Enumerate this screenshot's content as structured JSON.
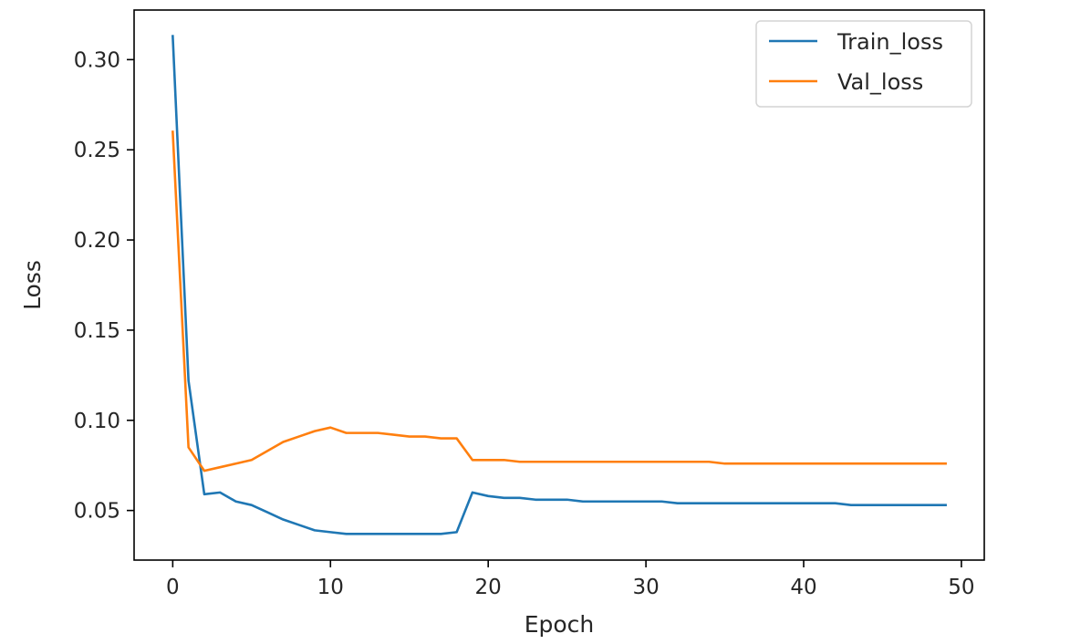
{
  "chart_data": {
    "type": "line",
    "title": "",
    "xlabel": "Epoch",
    "ylabel": "Loss",
    "xlim": [
      -2.45,
      51.45
    ],
    "ylim": [
      0.0225,
      0.3275
    ],
    "xticks": [
      0,
      10,
      20,
      30,
      40,
      50
    ],
    "yticks": [
      0.05,
      0.1,
      0.15,
      0.2,
      0.25,
      0.3
    ],
    "xtick_labels": [
      "0",
      "10",
      "20",
      "30",
      "40",
      "50"
    ],
    "ytick_labels": [
      "0.05",
      "0.10",
      "0.15",
      "0.20",
      "0.25",
      "0.30"
    ],
    "grid": false,
    "legend_position": "top-right",
    "x": [
      0,
      1,
      2,
      3,
      4,
      5,
      6,
      7,
      8,
      9,
      10,
      11,
      12,
      13,
      14,
      15,
      16,
      17,
      18,
      19,
      20,
      21,
      22,
      23,
      24,
      25,
      26,
      27,
      28,
      29,
      30,
      31,
      32,
      33,
      34,
      35,
      36,
      37,
      38,
      39,
      40,
      41,
      42,
      43,
      44,
      45,
      46,
      47,
      48,
      49
    ],
    "series": [
      {
        "name": "Train_loss",
        "color": "#1f77b4",
        "values": [
          0.313,
          0.122,
          0.059,
          0.06,
          0.055,
          0.053,
          0.049,
          0.045,
          0.042,
          0.039,
          0.038,
          0.037,
          0.037,
          0.037,
          0.037,
          0.037,
          0.037,
          0.037,
          0.038,
          0.06,
          0.058,
          0.057,
          0.057,
          0.056,
          0.056,
          0.056,
          0.055,
          0.055,
          0.055,
          0.055,
          0.055,
          0.055,
          0.054,
          0.054,
          0.054,
          0.054,
          0.054,
          0.054,
          0.054,
          0.054,
          0.054,
          0.054,
          0.054,
          0.053,
          0.053,
          0.053,
          0.053,
          0.053,
          0.053,
          0.053
        ]
      },
      {
        "name": "Val_loss",
        "color": "#ff7f0e",
        "values": [
          0.26,
          0.085,
          0.072,
          0.074,
          0.076,
          0.078,
          0.083,
          0.088,
          0.091,
          0.094,
          0.096,
          0.093,
          0.093,
          0.093,
          0.092,
          0.091,
          0.091,
          0.09,
          0.09,
          0.078,
          0.078,
          0.078,
          0.077,
          0.077,
          0.077,
          0.077,
          0.077,
          0.077,
          0.077,
          0.077,
          0.077,
          0.077,
          0.077,
          0.077,
          0.077,
          0.076,
          0.076,
          0.076,
          0.076,
          0.076,
          0.076,
          0.076,
          0.076,
          0.076,
          0.076,
          0.076,
          0.076,
          0.076,
          0.076,
          0.076
        ]
      }
    ]
  }
}
